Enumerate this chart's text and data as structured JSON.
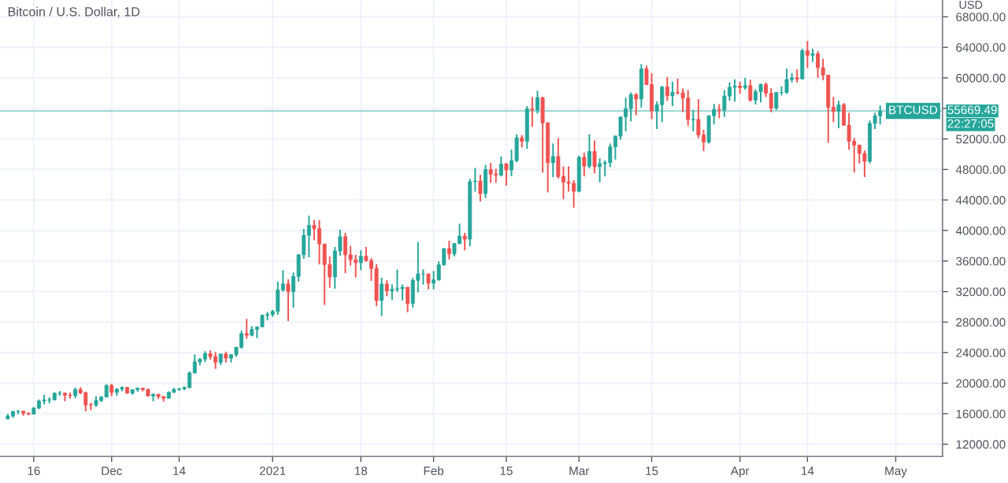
{
  "chart_data": {
    "type": "candlestick",
    "title": "Bitcoin / U.S. Dollar, 1D",
    "ylabel": "USD",
    "x": [
      "2020-11-11",
      "2020-11-12",
      "2020-11-13",
      "2020-11-14",
      "2020-11-15",
      "2020-11-16",
      "2020-11-17",
      "2020-11-18",
      "2020-11-19",
      "2020-11-20",
      "2020-11-21",
      "2020-11-22",
      "2020-11-23",
      "2020-11-24",
      "2020-11-25",
      "2020-11-26",
      "2020-11-27",
      "2020-11-28",
      "2020-11-29",
      "2020-11-30",
      "2020-12-01",
      "2020-12-02",
      "2020-12-03",
      "2020-12-04",
      "2020-12-05",
      "2020-12-06",
      "2020-12-07",
      "2020-12-08",
      "2020-12-09",
      "2020-12-10",
      "2020-12-11",
      "2020-12-12",
      "2020-12-13",
      "2020-12-14",
      "2020-12-15",
      "2020-12-16",
      "2020-12-17",
      "2020-12-18",
      "2020-12-19",
      "2020-12-20",
      "2020-12-21",
      "2020-12-22",
      "2020-12-23",
      "2020-12-24",
      "2020-12-25",
      "2020-12-26",
      "2020-12-27",
      "2020-12-28",
      "2020-12-29",
      "2020-12-30",
      "2020-12-31",
      "2021-01-01",
      "2021-01-02",
      "2021-01-03",
      "2021-01-04",
      "2021-01-05",
      "2021-01-06",
      "2021-01-07",
      "2021-01-08",
      "2021-01-09",
      "2021-01-10",
      "2021-01-11",
      "2021-01-12",
      "2021-01-13",
      "2021-01-14",
      "2021-01-15",
      "2021-01-16",
      "2021-01-17",
      "2021-01-18",
      "2021-01-19",
      "2021-01-20",
      "2021-01-21",
      "2021-01-22",
      "2021-01-23",
      "2021-01-24",
      "2021-01-25",
      "2021-01-26",
      "2021-01-27",
      "2021-01-28",
      "2021-01-29",
      "2021-01-30",
      "2021-01-31",
      "2021-02-01",
      "2021-02-02",
      "2021-02-03",
      "2021-02-04",
      "2021-02-05",
      "2021-02-06",
      "2021-02-07",
      "2021-02-08",
      "2021-02-09",
      "2021-02-10",
      "2021-02-11",
      "2021-02-12",
      "2021-02-13",
      "2021-02-14",
      "2021-02-15",
      "2021-02-16",
      "2021-02-17",
      "2021-02-18",
      "2021-02-19",
      "2021-02-20",
      "2021-02-21",
      "2021-02-22",
      "2021-02-23",
      "2021-02-24",
      "2021-02-25",
      "2021-02-26",
      "2021-02-27",
      "2021-02-28",
      "2021-03-01",
      "2021-03-02",
      "2021-03-03",
      "2021-03-04",
      "2021-03-05",
      "2021-03-06",
      "2021-03-07",
      "2021-03-08",
      "2021-03-09",
      "2021-03-10",
      "2021-03-11",
      "2021-03-12",
      "2021-03-13",
      "2021-03-14",
      "2021-03-15",
      "2021-03-16",
      "2021-03-17",
      "2021-03-18",
      "2021-03-19",
      "2021-03-20",
      "2021-03-21",
      "2021-03-22",
      "2021-03-23",
      "2021-03-24",
      "2021-03-25",
      "2021-03-26",
      "2021-03-27",
      "2021-03-28",
      "2021-03-29",
      "2021-03-30",
      "2021-03-31",
      "2021-04-01",
      "2021-04-02",
      "2021-04-03",
      "2021-04-04",
      "2021-04-05",
      "2021-04-06",
      "2021-04-07",
      "2021-04-08",
      "2021-04-09",
      "2021-04-10",
      "2021-04-11",
      "2021-04-12",
      "2021-04-13",
      "2021-04-14",
      "2021-04-15",
      "2021-04-16",
      "2021-04-17",
      "2021-04-18",
      "2021-04-19",
      "2021-04-20",
      "2021-04-21",
      "2021-04-22",
      "2021-04-23",
      "2021-04-24",
      "2021-04-25",
      "2021-04-26",
      "2021-04-27",
      "2021-04-28"
    ],
    "ohlc": [
      [
        15300,
        15960,
        15280,
        15700
      ],
      [
        15700,
        16340,
        15450,
        16300
      ],
      [
        16300,
        16480,
        15950,
        16330
      ],
      [
        16330,
        16340,
        15720,
        16070
      ],
      [
        16070,
        16150,
        15800,
        15960
      ],
      [
        15960,
        16870,
        15880,
        16730
      ],
      [
        16730,
        17860,
        16570,
        17660
      ],
      [
        17660,
        18480,
        17220,
        17800
      ],
      [
        17800,
        18140,
        17350,
        17820
      ],
      [
        17820,
        18800,
        17750,
        18680
      ],
      [
        18680,
        18960,
        18350,
        18700
      ],
      [
        18700,
        18750,
        17630,
        18420
      ],
      [
        18420,
        18780,
        18000,
        18370
      ],
      [
        18370,
        19420,
        18020,
        19160
      ],
      [
        19160,
        19470,
        18560,
        18740
      ],
      [
        18740,
        18900,
        16300,
        17150
      ],
      [
        17150,
        17460,
        16460,
        17140
      ],
      [
        17140,
        18250,
        16900,
        17720
      ],
      [
        17720,
        18310,
        17540,
        18180
      ],
      [
        18180,
        19850,
        18170,
        19700
      ],
      [
        19700,
        19920,
        18300,
        18790
      ],
      [
        18790,
        19330,
        18340,
        19220
      ],
      [
        19220,
        19580,
        18950,
        19440
      ],
      [
        19440,
        19520,
        18600,
        18700
      ],
      [
        18700,
        19170,
        18500,
        19150
      ],
      [
        19150,
        19420,
        18870,
        19360
      ],
      [
        19360,
        19400,
        18920,
        19170
      ],
      [
        19170,
        19280,
        18250,
        18320
      ],
      [
        18320,
        18650,
        17650,
        18550
      ],
      [
        18550,
        18570,
        17920,
        18250
      ],
      [
        18250,
        18300,
        17580,
        18030
      ],
      [
        18030,
        18920,
        18000,
        18800
      ],
      [
        18800,
        19390,
        18720,
        19170
      ],
      [
        19170,
        19340,
        19000,
        19270
      ],
      [
        19270,
        19560,
        19080,
        19440
      ],
      [
        19440,
        21520,
        19300,
        21350
      ],
      [
        21350,
        23770,
        21240,
        22800
      ],
      [
        22800,
        23280,
        22350,
        23130
      ],
      [
        23130,
        24200,
        22760,
        23870
      ],
      [
        23870,
        24300,
        23080,
        23480
      ],
      [
        23480,
        24100,
        21880,
        22730
      ],
      [
        22730,
        23840,
        22380,
        23830
      ],
      [
        23830,
        24130,
        22700,
        23280
      ],
      [
        23280,
        23790,
        22720,
        23730
      ],
      [
        23730,
        24780,
        23450,
        24700
      ],
      [
        24700,
        26870,
        24510,
        26490
      ],
      [
        26490,
        28420,
        25850,
        26280
      ],
      [
        26280,
        27470,
        26140,
        27040
      ],
      [
        27040,
        27400,
        25880,
        27370
      ],
      [
        27370,
        29000,
        27330,
        28880
      ],
      [
        28880,
        29330,
        28230,
        29000
      ],
      [
        29000,
        29600,
        28700,
        29400
      ],
      [
        29400,
        33300,
        28950,
        32200
      ],
      [
        32200,
        34800,
        32000,
        33000
      ],
      [
        33000,
        33600,
        28130,
        31990
      ],
      [
        31990,
        34500,
        29900,
        33990
      ],
      [
        33990,
        36900,
        33300,
        36820
      ],
      [
        36820,
        40200,
        36300,
        39370
      ],
      [
        39370,
        41950,
        36500,
        40670
      ],
      [
        40670,
        41380,
        38720,
        40240
      ],
      [
        40240,
        41350,
        35550,
        38240
      ],
      [
        38240,
        38260,
        30260,
        35540
      ],
      [
        35540,
        36600,
        32500,
        33920
      ],
      [
        33920,
        37850,
        32380,
        37320
      ],
      [
        37320,
        40100,
        36700,
        39190
      ],
      [
        39190,
        39700,
        34400,
        36830
      ],
      [
        36830,
        37950,
        35400,
        36180
      ],
      [
        36180,
        36820,
        33850,
        35790
      ],
      [
        35790,
        37400,
        34800,
        36630
      ],
      [
        36630,
        37850,
        35900,
        36070
      ],
      [
        36070,
        36400,
        33400,
        35030
      ],
      [
        35030,
        35600,
        30100,
        30830
      ],
      [
        30830,
        33820,
        28800,
        32990
      ],
      [
        32990,
        33500,
        31400,
        32100
      ],
      [
        32100,
        32940,
        30900,
        32290
      ],
      [
        32290,
        34880,
        31950,
        32370
      ],
      [
        32370,
        32940,
        30830,
        32570
      ],
      [
        32570,
        32570,
        29300,
        30430
      ],
      [
        30430,
        33780,
        29900,
        33470
      ],
      [
        33470,
        38500,
        31900,
        34320
      ],
      [
        34320,
        34900,
        32900,
        34320
      ],
      [
        34320,
        34320,
        32300,
        33110
      ],
      [
        33110,
        34700,
        32300,
        33530
      ],
      [
        33530,
        35940,
        33430,
        35510
      ],
      [
        35510,
        37700,
        35400,
        37620
      ],
      [
        37620,
        38670,
        36200,
        36940
      ],
      [
        36940,
        38300,
        36600,
        38290
      ],
      [
        38290,
        40900,
        38200,
        39270
      ],
      [
        39270,
        39700,
        37400,
        38870
      ],
      [
        38870,
        46750,
        37950,
        46400
      ],
      [
        46400,
        48200,
        45100,
        46480
      ],
      [
        46480,
        47300,
        43800,
        44840
      ],
      [
        44840,
        48600,
        44250,
        47980
      ],
      [
        47980,
        48850,
        46250,
        47390
      ],
      [
        47390,
        48100,
        46250,
        47250
      ],
      [
        47250,
        49700,
        47100,
        48710
      ],
      [
        48710,
        48870,
        45900,
        47940
      ],
      [
        47940,
        50600,
        47100,
        49160
      ],
      [
        49160,
        52600,
        48950,
        52150
      ],
      [
        52150,
        52500,
        50900,
        51680
      ],
      [
        51680,
        56300,
        50700,
        55920
      ],
      [
        55920,
        57500,
        53600,
        55800
      ],
      [
        55800,
        58300,
        55300,
        57410
      ],
      [
        57410,
        57530,
        47600,
        54090
      ],
      [
        54090,
        54200,
        45000,
        48880
      ],
      [
        48880,
        51400,
        47000,
        49700
      ],
      [
        49700,
        52100,
        46800,
        47090
      ],
      [
        47090,
        48400,
        44100,
        46340
      ],
      [
        46340,
        48400,
        45100,
        46190
      ],
      [
        46190,
        46600,
        43000,
        45140
      ],
      [
        45140,
        49790,
        45000,
        49590
      ],
      [
        49590,
        50200,
        47100,
        48440
      ],
      [
        48440,
        52600,
        48130,
        50350
      ],
      [
        50350,
        51800,
        47500,
        48370
      ],
      [
        48370,
        49450,
        46300,
        48760
      ],
      [
        48760,
        49200,
        47100,
        48880
      ],
      [
        48880,
        51400,
        48300,
        50970
      ],
      [
        50970,
        52400,
        49300,
        52380
      ],
      [
        52380,
        54900,
        51900,
        54880
      ],
      [
        54880,
        57400,
        53000,
        55960
      ],
      [
        55960,
        58100,
        54300,
        57800
      ],
      [
        57800,
        58000,
        55100,
        57230
      ],
      [
        57230,
        61800,
        56100,
        61180
      ],
      [
        61180,
        61600,
        59100,
        59120
      ],
      [
        59120,
        60600,
        54600,
        55670
      ],
      [
        55670,
        56900,
        53300,
        56480
      ],
      [
        56480,
        58950,
        54200,
        58790
      ],
      [
        58790,
        60100,
        57000,
        57660
      ],
      [
        57660,
        59500,
        56300,
        58100
      ],
      [
        58100,
        59900,
        57800,
        58040
      ],
      [
        58040,
        58600,
        55500,
        57350
      ],
      [
        57350,
        58400,
        53700,
        54520
      ],
      [
        54520,
        55800,
        53000,
        54550
      ],
      [
        54550,
        57200,
        52100,
        52510
      ],
      [
        52510,
        53200,
        50400,
        51580
      ],
      [
        51580,
        55100,
        51400,
        55030
      ],
      [
        55030,
        56600,
        53900,
        55840
      ],
      [
        55840,
        56550,
        54700,
        55780
      ],
      [
        55780,
        58400,
        54900,
        57620
      ],
      [
        57620,
        59400,
        57000,
        58770
      ],
      [
        58770,
        59800,
        56900,
        58920
      ],
      [
        58920,
        59500,
        57900,
        58720
      ],
      [
        58720,
        60000,
        58450,
        58980
      ],
      [
        58980,
        59750,
        56900,
        57090
      ],
      [
        57090,
        58500,
        56500,
        58200
      ],
      [
        58200,
        59250,
        56800,
        59130
      ],
      [
        59130,
        59400,
        57500,
        57990
      ],
      [
        57990,
        58650,
        55500,
        56040
      ],
      [
        56040,
        58150,
        55800,
        58090
      ],
      [
        58090,
        58900,
        57700,
        58090
      ],
      [
        58090,
        61200,
        57900,
        59790
      ],
      [
        59790,
        60600,
        59400,
        60000
      ],
      [
        60000,
        61100,
        59400,
        59860
      ],
      [
        59860,
        63800,
        59800,
        63550
      ],
      [
        63550,
        64850,
        61300,
        62960
      ],
      [
        62960,
        63800,
        62100,
        63160
      ],
      [
        63160,
        63500,
        60000,
        61330
      ],
      [
        61330,
        62500,
        59700,
        60360
      ],
      [
        60360,
        60400,
        51500,
        56150
      ],
      [
        56150,
        57500,
        54200,
        55620
      ],
      [
        55620,
        57000,
        53400,
        56470
      ],
      [
        56470,
        56700,
        53700,
        53800
      ],
      [
        53800,
        55400,
        50600,
        51700
      ],
      [
        51700,
        52100,
        47600,
        51190
      ],
      [
        51190,
        51200,
        48800,
        50100
      ],
      [
        50100,
        50500,
        47000,
        49060
      ],
      [
        49060,
        54400,
        48800,
        54020
      ],
      [
        54020,
        55400,
        53300,
        55030
      ],
      [
        55030,
        56400,
        53900,
        55669.49
      ]
    ],
    "colors": [
      "#26a69a",
      "#26a69a",
      "#26a69a",
      "#ef5350",
      "#ef5350",
      "#26a69a",
      "#26a69a",
      "#26a69a",
      "#26a69a",
      "#26a69a",
      "#26a69a",
      "#ef5350",
      "#ef5350",
      "#26a69a",
      "#ef5350",
      "#ef5350",
      "#ef5350",
      "#26a69a",
      "#26a69a",
      "#26a69a",
      "#ef5350",
      "#26a69a",
      "#26a69a",
      "#ef5350",
      "#26a69a",
      "#26a69a",
      "#ef5350",
      "#ef5350",
      "#26a69a",
      "#ef5350",
      "#ef5350",
      "#26a69a",
      "#26a69a",
      "#26a69a",
      "#26a69a",
      "#26a69a",
      "#26a69a",
      "#26a69a",
      "#26a69a",
      "#ef5350",
      "#ef5350",
      "#26a69a",
      "#ef5350",
      "#26a69a",
      "#26a69a",
      "#26a69a",
      "#ef5350",
      "#26a69a",
      "#26a69a",
      "#26a69a",
      "#26a69a",
      "#26a69a",
      "#26a69a",
      "#26a69a",
      "#ef5350",
      "#26a69a",
      "#26a69a",
      "#26a69a",
      "#26a69a",
      "#ef5350",
      "#ef5350",
      "#ef5350",
      "#ef5350",
      "#26a69a",
      "#26a69a",
      "#ef5350",
      "#ef5350",
      "#ef5350",
      "#26a69a",
      "#ef5350",
      "#ef5350",
      "#ef5350",
      "#26a69a",
      "#ef5350",
      "#26a69a",
      "#26a69a",
      "#26a69a",
      "#ef5350",
      "#26a69a",
      "#26a69a",
      "#26a69a",
      "#ef5350",
      "#26a69a",
      "#26a69a",
      "#26a69a",
      "#ef5350",
      "#26a69a",
      "#26a69a",
      "#ef5350",
      "#26a69a",
      "#26a69a",
      "#ef5350",
      "#26a69a",
      "#ef5350",
      "#ef5350",
      "#26a69a",
      "#ef5350",
      "#26a69a",
      "#26a69a",
      "#ef5350",
      "#26a69a",
      "#ef5350",
      "#26a69a",
      "#ef5350",
      "#ef5350",
      "#26a69a",
      "#ef5350",
      "#ef5350",
      "#ef5350",
      "#ef5350",
      "#26a69a",
      "#ef5350",
      "#26a69a",
      "#ef5350",
      "#26a69a",
      "#26a69a",
      "#26a69a",
      "#26a69a",
      "#26a69a",
      "#26a69a",
      "#26a69a",
      "#ef5350",
      "#26a69a",
      "#ef5350",
      "#ef5350",
      "#26a69a",
      "#26a69a",
      "#ef5350",
      "#26a69a",
      "#ef5350",
      "#ef5350",
      "#ef5350",
      "#26a69a",
      "#ef5350",
      "#ef5350",
      "#26a69a",
      "#26a69a",
      "#ef5350",
      "#26a69a",
      "#26a69a",
      "#26a69a",
      "#ef5350",
      "#26a69a",
      "#ef5350",
      "#26a69a",
      "#26a69a",
      "#ef5350",
      "#ef5350",
      "#26a69a",
      "#26a69a",
      "#26a69a",
      "#26a69a",
      "#ef5350",
      "#26a69a",
      "#ef5350",
      "#26a69a",
      "#ef5350",
      "#ef5350",
      "#ef5350",
      "#ef5350",
      "#26a69a",
      "#ef5350",
      "#ef5350",
      "#ef5350",
      "#ef5350",
      "#ef5350",
      "#26a69a",
      "#26a69a",
      "#26a69a"
    ],
    "xlim": [
      "2020-11-09T12:00",
      "2021-05-10"
    ],
    "xticks": [
      {
        "value": "2020-11-16",
        "label": "16"
      },
      {
        "value": "2020-12-01",
        "label": "Dec"
      },
      {
        "value": "2020-12-14",
        "label": "14"
      },
      {
        "value": "2021-01-01",
        "label": "2021"
      },
      {
        "value": "2021-01-18",
        "label": "18"
      },
      {
        "value": "2021-02-01",
        "label": "Feb"
      },
      {
        "value": "2021-02-15",
        "label": "15"
      },
      {
        "value": "2021-03-01",
        "label": "Mar"
      },
      {
        "value": "2021-03-15",
        "label": "15"
      },
      {
        "value": "2021-04-01",
        "label": "Apr"
      },
      {
        "value": "2021-04-14",
        "label": "14"
      },
      {
        "value": "2021-05-01",
        "label": "May"
      }
    ],
    "ylim": [
      10400,
      70200
    ],
    "yticks": [
      {
        "value": 12000,
        "label": "12000.00"
      },
      {
        "value": 16000,
        "label": "16000.00"
      },
      {
        "value": 20000,
        "label": "20000.00"
      },
      {
        "value": 24000,
        "label": "24000.00"
      },
      {
        "value": 28000,
        "label": "28000.00"
      },
      {
        "value": 32000,
        "label": "32000.00"
      },
      {
        "value": 36000,
        "label": "36000.00"
      },
      {
        "value": 40000,
        "label": "40000.00"
      },
      {
        "value": 44000,
        "label": "44000.00"
      },
      {
        "value": 48000,
        "label": "48000.00"
      },
      {
        "value": 52000,
        "label": "52000.00"
      },
      {
        "value": 56000,
        "label": null
      },
      {
        "value": 60000,
        "label": "60000.00"
      },
      {
        "value": 64000,
        "label": "64000.00"
      },
      {
        "value": 68000,
        "label": "68000.00"
      }
    ],
    "grid": true,
    "ref_lines": [
      {
        "axis": "y",
        "value": 55669.49,
        "label": "55669.49",
        "color": "#26a69a",
        "line_style": "solid"
      }
    ],
    "annotations": [
      "BTCUSD",
      "22:27:05"
    ]
  }
}
